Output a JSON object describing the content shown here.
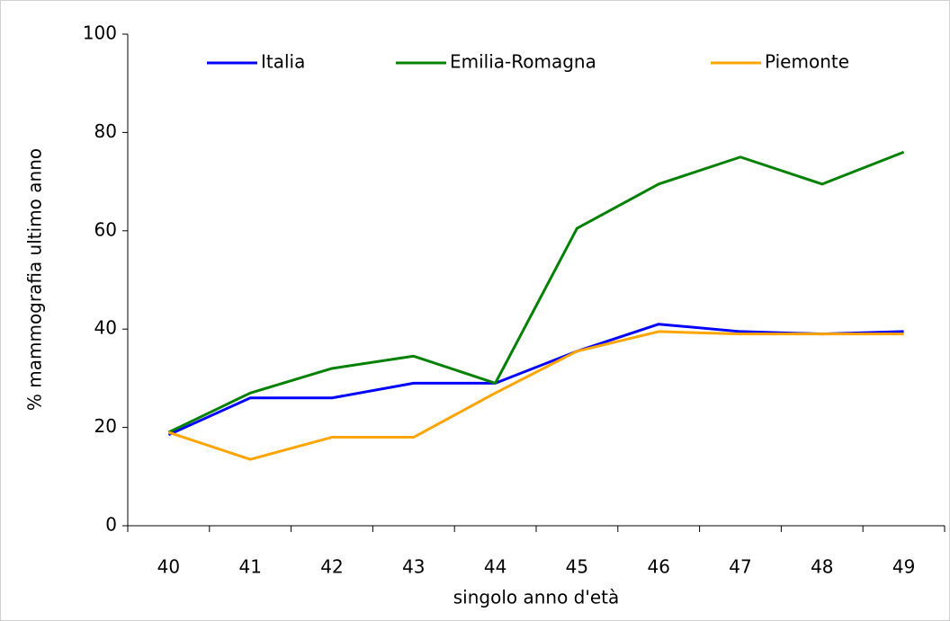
{
  "chart_data": {
    "type": "line",
    "y_label": "% mammografia ultimo anno",
    "x_label": "singolo anno d'età",
    "categories": [
      "40",
      "41",
      "42",
      "43",
      "44",
      "45",
      "46",
      "47",
      "48",
      "49"
    ],
    "series": [
      {
        "name": "Italia",
        "color": "#0000ff",
        "values": [
          18.5,
          26,
          26,
          29,
          29,
          35.5,
          41,
          39.5,
          39,
          39.5
        ]
      },
      {
        "name": "Emilia-Romagna",
        "color": "#008000",
        "values": [
          19,
          27,
          32,
          34.5,
          29,
          60.5,
          69.5,
          75,
          69.5,
          76
        ]
      },
      {
        "name": "Piemonte",
        "color": "#ffa500",
        "values": [
          19,
          13.5,
          18,
          18,
          27,
          35.5,
          39.5,
          39,
          39,
          39
        ]
      }
    ],
    "ylim": [
      0,
      100
    ],
    "yticks": [
      0,
      20,
      40,
      60,
      80,
      100
    ],
    "legend": "top"
  }
}
